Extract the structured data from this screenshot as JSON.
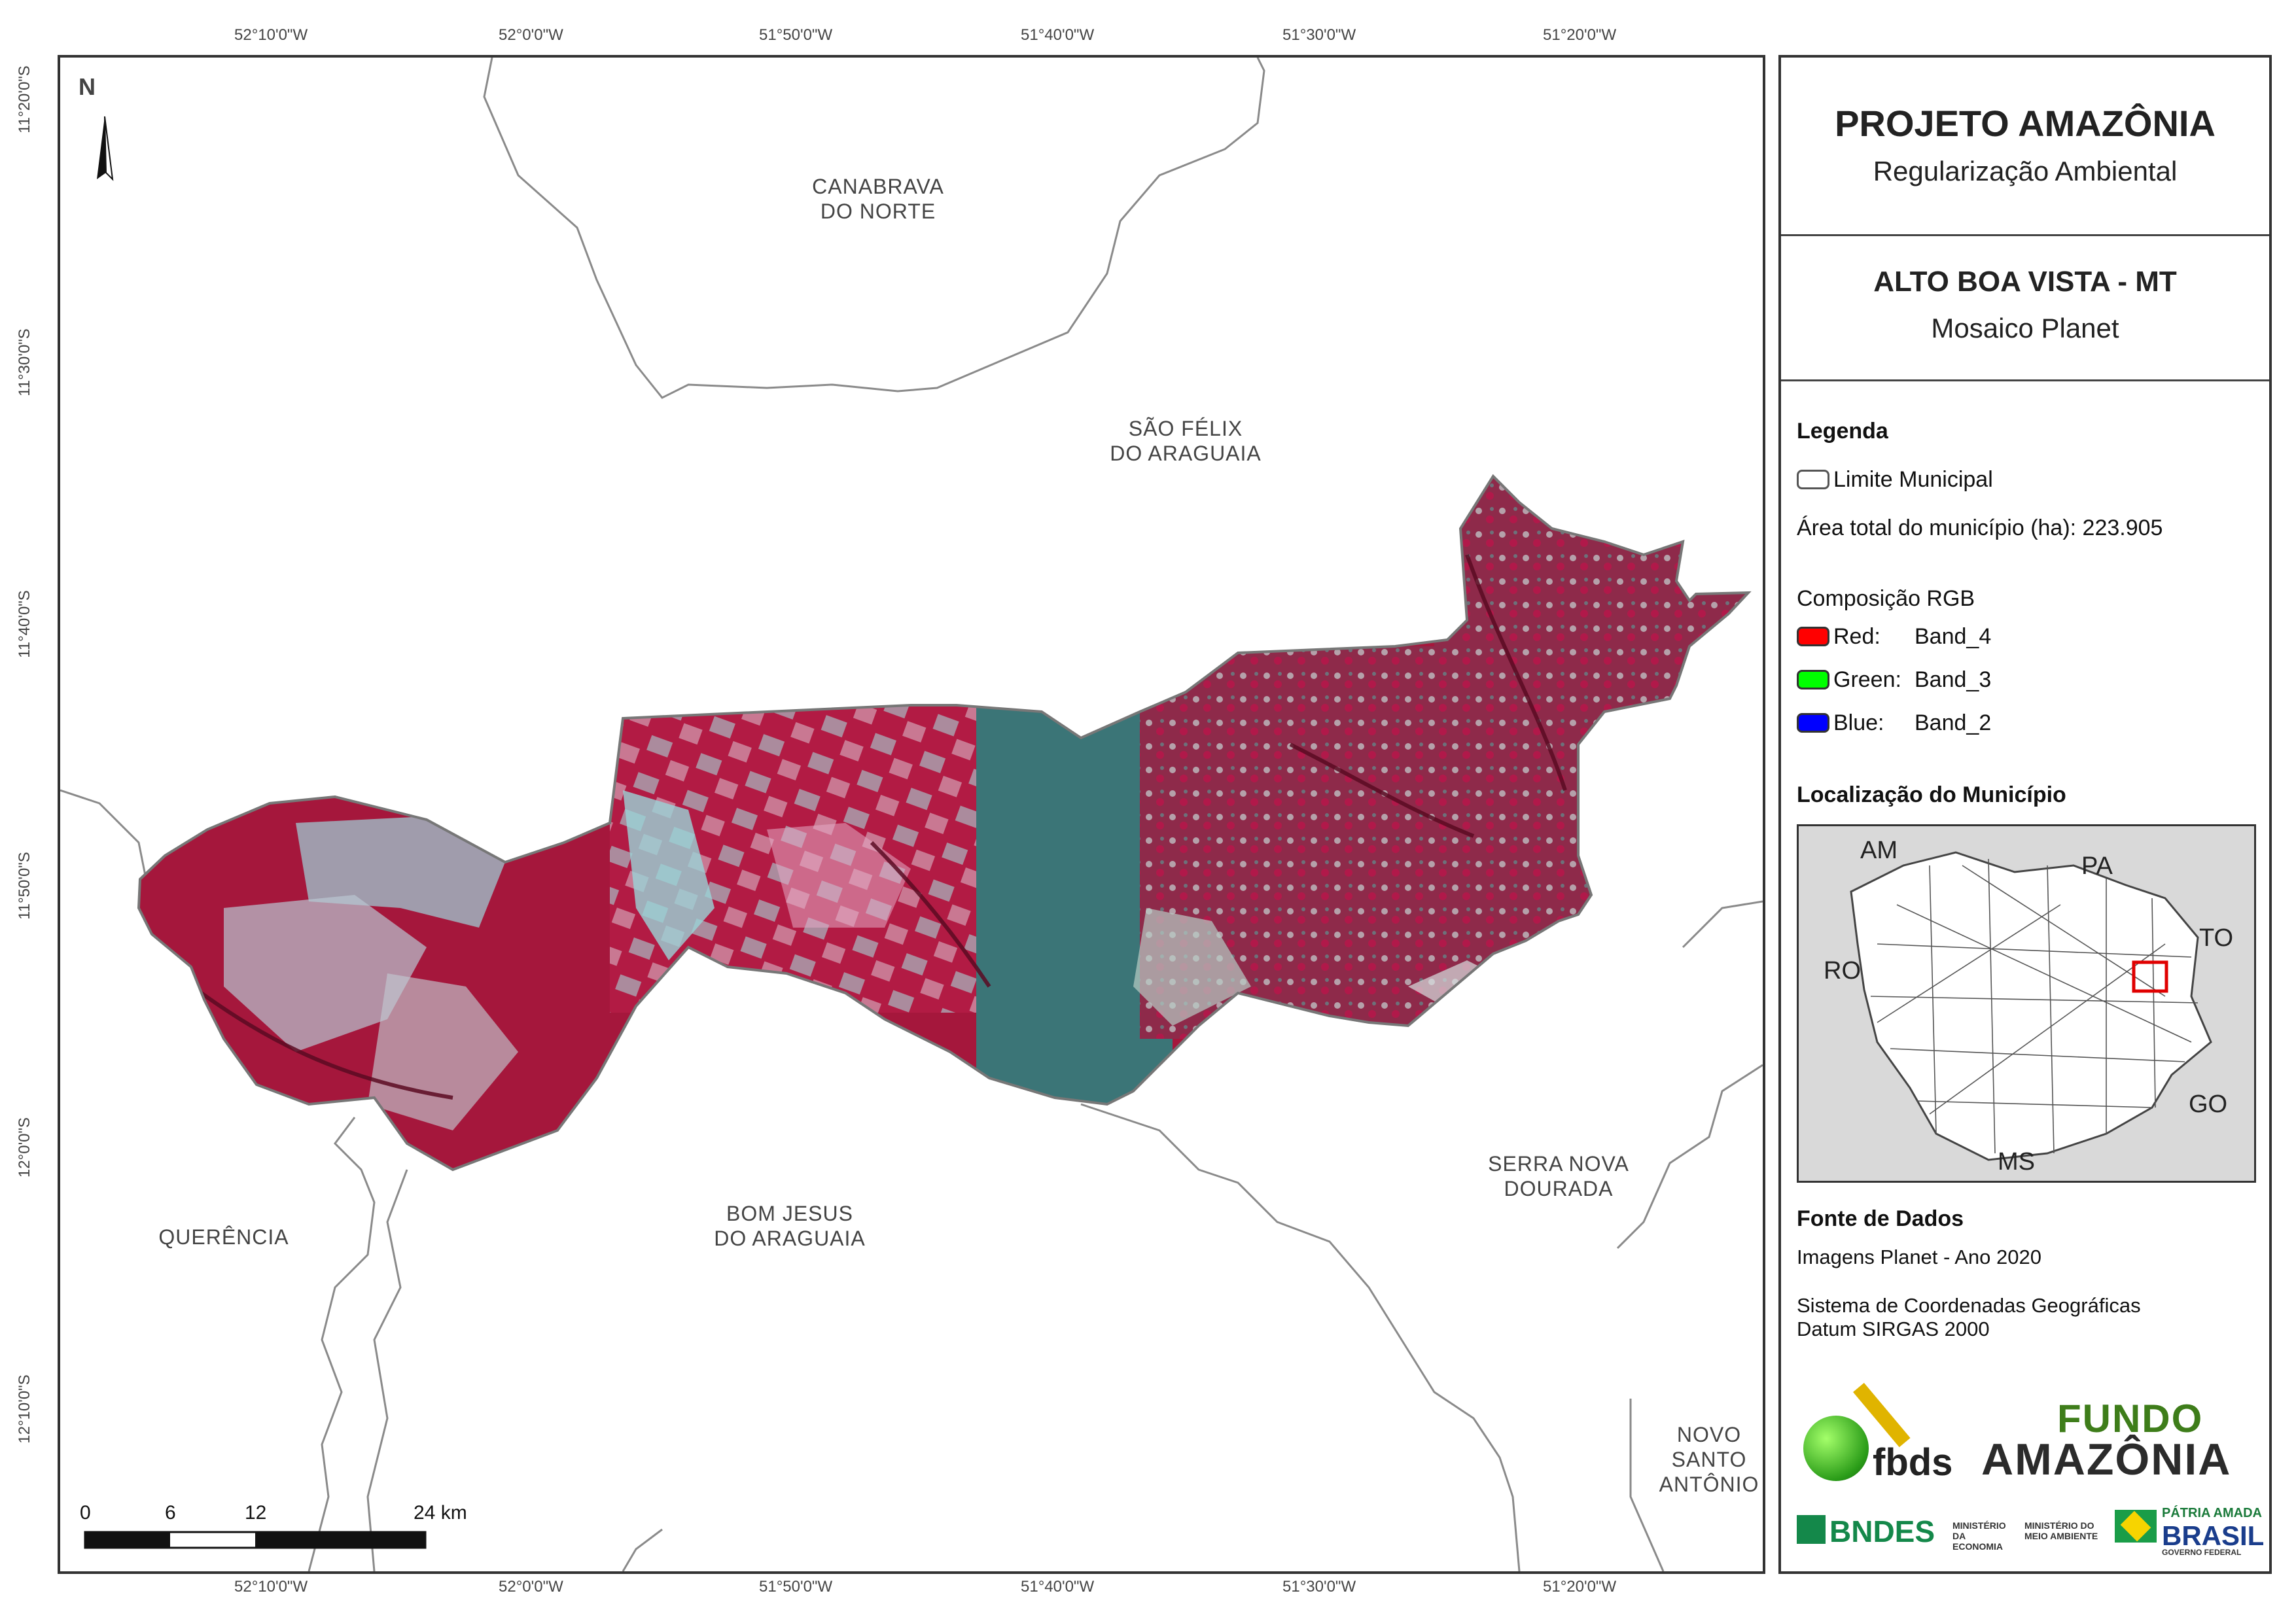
{
  "map": {
    "top_lon_labels": [
      "52°10'0\"W",
      "52°0'0\"W",
      "51°50'0\"W",
      "51°40'0\"W",
      "51°30'0\"W",
      "51°20'0\"W"
    ],
    "bottom_lon_labels": [
      "52°10'0\"W",
      "52°0'0\"W",
      "51°50'0\"W",
      "51°40'0\"W",
      "51°30'0\"W",
      "51°20'0\"W"
    ],
    "lat_labels": [
      "11°20'0\"S",
      "11°30'0\"S",
      "11°40'0\"S",
      "11°50'0\"S",
      "12°0'0\"S",
      "12°10'0\"S"
    ],
    "north_label": "N",
    "municipalities": {
      "canabrava": [
        "CANABRAVA",
        "DO NORTE"
      ],
      "sao_felix": [
        "SÃO FÉLIX",
        "DO ARAGUAIA"
      ],
      "serra_nova": [
        "SERRA NOVA",
        "DOURADA"
      ],
      "bom_jesus": [
        "BOM JESUS",
        "DO ARAGUAIA"
      ],
      "querencia": [
        "QUERÊNCIA"
      ],
      "novo_santo": [
        "NOVO",
        "SANTO",
        "ANTÔNIO"
      ]
    },
    "scale_labels": [
      "0",
      "6",
      "12",
      "24 km"
    ]
  },
  "panel": {
    "title": "PROJETO AMAZÔNIA",
    "subtitle": "Regularização Ambiental",
    "map_title": "ALTO BOA VISTA - MT",
    "map_subtitle": "Mosaico Planet",
    "legend_heading": "Legenda",
    "legend_limit": "Limite Municipal",
    "area_total": "Área total do município (ha): 223.905",
    "rgb_heading": "Composição RGB",
    "bands": [
      {
        "channel": "Red:",
        "band": "Band_4",
        "color": "#ff0000"
      },
      {
        "channel": "Green:",
        "band": "Band_3",
        "color": "#00ff00"
      },
      {
        "channel": "Blue:",
        "band": "Band_2",
        "color": "#0000ff"
      }
    ],
    "location_heading": "Localização do Município",
    "inset_labels": [
      "AM",
      "PA",
      "TO",
      "RO",
      "GO",
      "MS"
    ],
    "source_heading": "Fonte de Dados",
    "source_lines": [
      "Imagens Planet - Ano 2020",
      "Sistema de Coordenadas Geográficas",
      "Datum SIRGAS 2000"
    ],
    "logos": {
      "fbds": "fbds",
      "fundo_1": "FUNDO",
      "fundo_2": "AMAZÔNIA",
      "bndes": "BNDES",
      "min_economia": "MINISTÉRIO DA ECONOMIA",
      "min_meio": "MINISTÉRIO DO MEIO AMBIENTE",
      "patria": "PÁTRIA AMADA",
      "brasil": "BRASIL",
      "gov": "GOVERNO FEDERAL"
    }
  },
  "colors": {
    "boundary": "#888888",
    "forest_red": "#b0143c",
    "pasture": "#9ad4d8",
    "river": "#6a0f2a",
    "teal": "#3d7a7a"
  }
}
